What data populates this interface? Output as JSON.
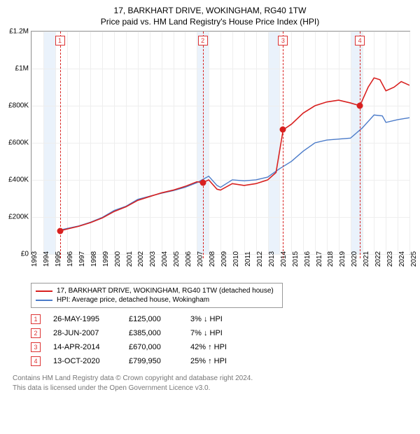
{
  "title": "17, BARKHART DRIVE, WOKINGHAM, RG40 1TW",
  "subtitle": "Price paid vs. HM Land Registry's House Price Index (HPI)",
  "chart": {
    "type": "line",
    "x_years": [
      1993,
      1994,
      1995,
      1996,
      1997,
      1998,
      1999,
      2000,
      2001,
      2002,
      2003,
      2004,
      2005,
      2006,
      2007,
      2008,
      2009,
      2010,
      2011,
      2012,
      2013,
      2014,
      2015,
      2016,
      2017,
      2018,
      2019,
      2020,
      2021,
      2022,
      2023,
      2024,
      2025
    ],
    "ylim": [
      0,
      1200000
    ],
    "yticks": [
      0,
      200000,
      400000,
      600000,
      800000,
      1000000,
      1200000
    ],
    "ylabels": [
      "£0",
      "£200K",
      "£400K",
      "£600K",
      "£800K",
      "£1M",
      "£1.2M"
    ],
    "grid_color": "#eeeeee",
    "border_color": "#999999",
    "band_color": "#eaf2fb",
    "band_years": [
      [
        1994,
        1995
      ],
      [
        2007,
        2008
      ],
      [
        2013,
        2014
      ],
      [
        2020,
        2021
      ]
    ],
    "series": {
      "property": {
        "color": "#d8201f",
        "width": 1.6,
        "label": "17, BARKHART DRIVE, WOKINGHAM, RG40 1TW (detached house)",
        "points": [
          [
            1995.4,
            125000
          ],
          [
            1996,
            135000
          ],
          [
            1997,
            150000
          ],
          [
            1998,
            170000
          ],
          [
            1999,
            195000
          ],
          [
            2000,
            230000
          ],
          [
            2001,
            255000
          ],
          [
            2002,
            290000
          ],
          [
            2003,
            310000
          ],
          [
            2004,
            330000
          ],
          [
            2005,
            345000
          ],
          [
            2006,
            365000
          ],
          [
            2007,
            390000
          ],
          [
            2007.5,
            385000
          ],
          [
            2008,
            400000
          ],
          [
            2008.7,
            350000
          ],
          [
            2009,
            345000
          ],
          [
            2010,
            380000
          ],
          [
            2011,
            370000
          ],
          [
            2012,
            380000
          ],
          [
            2013,
            400000
          ],
          [
            2013.7,
            440000
          ],
          [
            2014.3,
            670000
          ],
          [
            2015,
            700000
          ],
          [
            2016,
            760000
          ],
          [
            2017,
            800000
          ],
          [
            2018,
            820000
          ],
          [
            2019,
            830000
          ],
          [
            2020,
            815000
          ],
          [
            2020.8,
            799950
          ],
          [
            2021.5,
            900000
          ],
          [
            2022,
            950000
          ],
          [
            2022.5,
            940000
          ],
          [
            2023,
            880000
          ],
          [
            2023.7,
            900000
          ],
          [
            2024.3,
            930000
          ],
          [
            2025,
            910000
          ]
        ]
      },
      "hpi": {
        "color": "#4b7bc9",
        "width": 1.4,
        "label": "HPI: Average price, detached house, Wokingham",
        "points": [
          [
            1995.4,
            130000
          ],
          [
            1996,
            138000
          ],
          [
            1997,
            152000
          ],
          [
            1998,
            172000
          ],
          [
            1999,
            198000
          ],
          [
            2000,
            235000
          ],
          [
            2001,
            258000
          ],
          [
            2002,
            295000
          ],
          [
            2003,
            312000
          ],
          [
            2004,
            328000
          ],
          [
            2005,
            342000
          ],
          [
            2006,
            360000
          ],
          [
            2007,
            385000
          ],
          [
            2008,
            420000
          ],
          [
            2008.7,
            370000
          ],
          [
            2009,
            360000
          ],
          [
            2010,
            400000
          ],
          [
            2011,
            395000
          ],
          [
            2012,
            400000
          ],
          [
            2013,
            415000
          ],
          [
            2014,
            460000
          ],
          [
            2015,
            500000
          ],
          [
            2016,
            555000
          ],
          [
            2017,
            600000
          ],
          [
            2018,
            615000
          ],
          [
            2019,
            620000
          ],
          [
            2020,
            625000
          ],
          [
            2021,
            680000
          ],
          [
            2022,
            750000
          ],
          [
            2022.7,
            745000
          ],
          [
            2023,
            710000
          ],
          [
            2024,
            725000
          ],
          [
            2025,
            735000
          ]
        ]
      }
    },
    "transactions": [
      {
        "n": "1",
        "year": 1995.4,
        "value": 125000,
        "date": "26-MAY-1995",
        "price": "£125,000",
        "pct": "3%",
        "dir": "down"
      },
      {
        "n": "2",
        "year": 2007.5,
        "value": 385000,
        "date": "28-JUN-2007",
        "price": "£385,000",
        "pct": "7%",
        "dir": "down"
      },
      {
        "n": "3",
        "year": 2014.3,
        "value": 670000,
        "date": "14-APR-2014",
        "price": "£670,000",
        "pct": "42%",
        "dir": "up"
      },
      {
        "n": "4",
        "year": 2020.8,
        "value": 799950,
        "date": "13-OCT-2020",
        "price": "£799,950",
        "pct": "25%",
        "dir": "up"
      }
    ],
    "marker_color": "#d8201f"
  },
  "hpi_label": "HPI",
  "footer1": "Contains HM Land Registry data © Crown copyright and database right 2024.",
  "footer2": "This data is licensed under the Open Government Licence v3.0."
}
